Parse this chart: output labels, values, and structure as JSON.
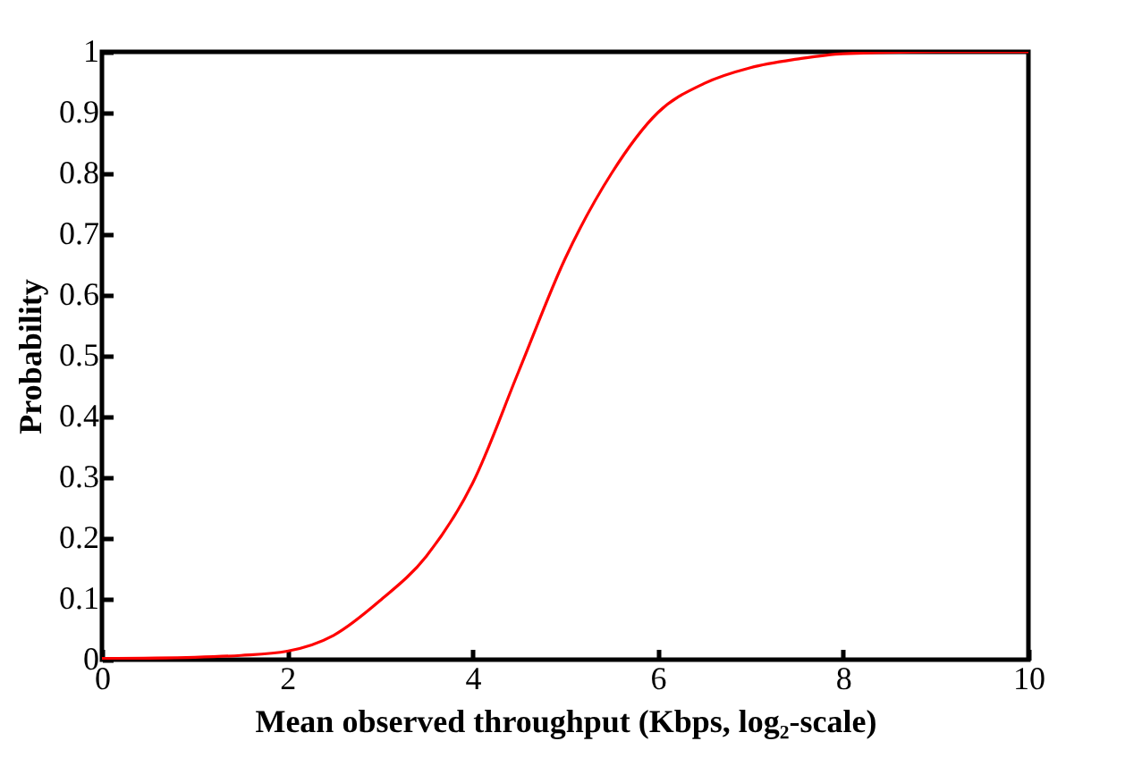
{
  "chart_data": {
    "type": "line",
    "xlabel": "Mean observed throughput (Kbps, log₂-scale)",
    "ylabel": "Probability",
    "x": [
      0,
      1,
      1.5,
      2,
      2.5,
      3,
      3.5,
      4,
      4.5,
      5,
      5.5,
      6,
      6.5,
      7,
      7.5,
      8,
      9,
      10
    ],
    "series": [
      {
        "color": "#ff0000",
        "values": [
          0.002,
          0.004,
          0.007,
          0.014,
          0.04,
          0.097,
          0.17,
          0.29,
          0.475,
          0.66,
          0.8,
          0.9,
          0.948,
          0.974,
          0.988,
          0.997,
          1,
          1
        ]
      }
    ],
    "xlim": [
      0,
      10
    ],
    "xticks": [
      0,
      2,
      4,
      6,
      8,
      10
    ],
    "ylim": [
      0,
      1
    ],
    "yticks": [
      0,
      0.1,
      0.2,
      0.3,
      0.4,
      0.5,
      0.6,
      0.7,
      0.8,
      0.9,
      1
    ],
    "grid": false,
    "legend": false,
    "marker": "none",
    "line_style": "solid"
  }
}
